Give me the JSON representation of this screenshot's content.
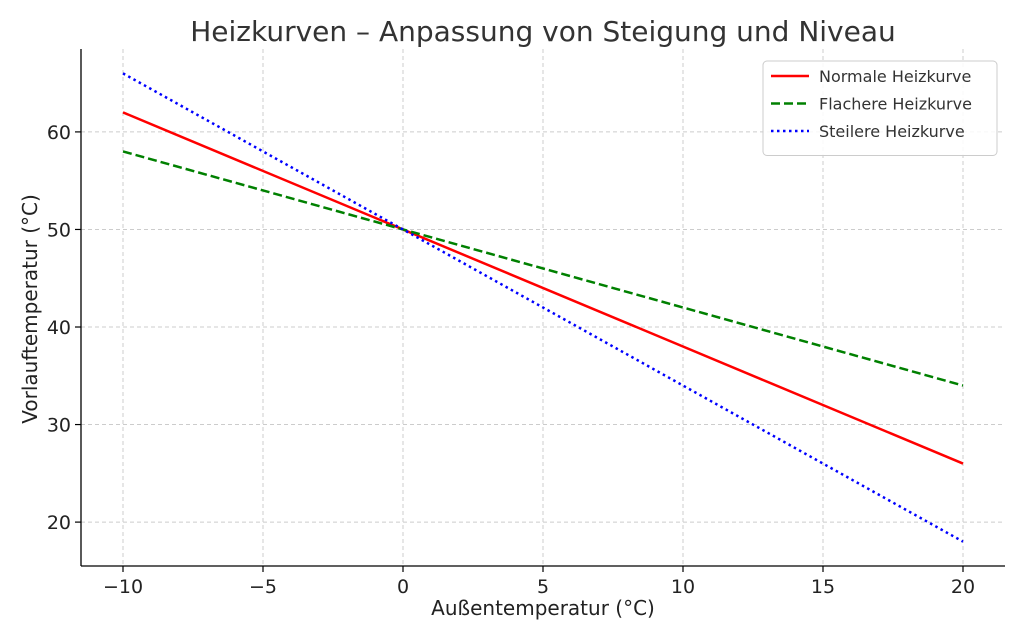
{
  "chart_data": {
    "type": "line",
    "title": "Heizkurven – Anpassung von Steigung und Niveau",
    "xlabel": "Außentemperatur (°C)",
    "ylabel": "Vorlauftemperatur (°C)",
    "xlim": [
      -11.5,
      21.5
    ],
    "ylim": [
      15.5,
      68.5
    ],
    "xticks": [
      -10,
      -5,
      0,
      5,
      10,
      15,
      20
    ],
    "xtick_labels": [
      "−10",
      "−5",
      "0",
      "5",
      "10",
      "15",
      "20"
    ],
    "yticks": [
      20,
      30,
      40,
      50,
      60
    ],
    "ytick_labels": [
      "20",
      "30",
      "40",
      "50",
      "60"
    ],
    "grid": true,
    "legend_position": "top-right",
    "series": [
      {
        "name": "Normale Heizkurve",
        "x": [
          -10,
          20
        ],
        "y": [
          62,
          26
        ],
        "color": "#ff0000",
        "style": "solid"
      },
      {
        "name": "Flachere Heizkurve",
        "x": [
          -10,
          20
        ],
        "y": [
          58,
          34
        ],
        "color": "#008000",
        "style": "dashed"
      },
      {
        "name": "Steilere Heizkurve",
        "x": [
          -10,
          20
        ],
        "y": [
          66,
          18
        ],
        "color": "#0000ff",
        "style": "dotted"
      }
    ]
  }
}
